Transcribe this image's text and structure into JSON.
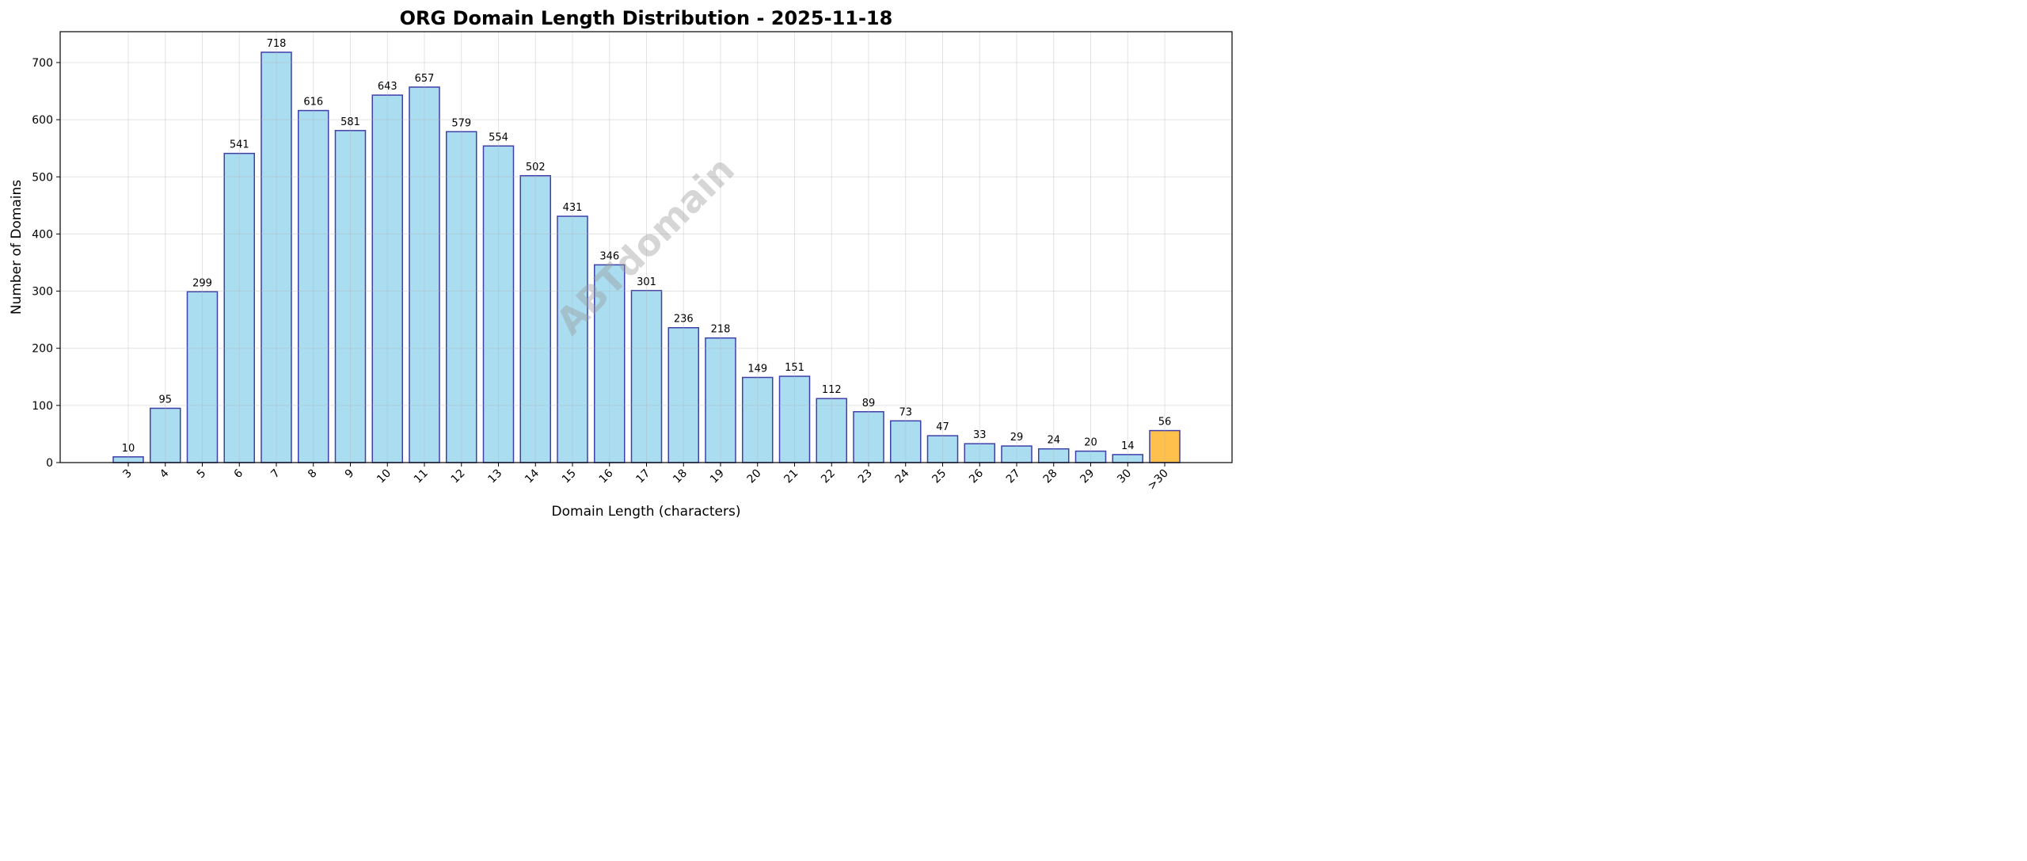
{
  "chart_data": {
    "type": "bar",
    "title": "ORG Domain Length Distribution - 2025-11-18",
    "xlabel": "Domain Length (characters)",
    "ylabel": "Number of Domains",
    "categories": [
      "3",
      "4",
      "5",
      "6",
      "7",
      "8",
      "9",
      "10",
      "11",
      "12",
      "13",
      "14",
      "15",
      "16",
      "17",
      "18",
      "19",
      "20",
      "21",
      "22",
      "23",
      "24",
      "25",
      "26",
      "27",
      "28",
      "29",
      "30",
      ">30"
    ],
    "values": [
      10,
      95,
      299,
      541,
      718,
      616,
      581,
      643,
      657,
      579,
      554,
      502,
      431,
      346,
      301,
      236,
      218,
      149,
      151,
      112,
      89,
      73,
      47,
      33,
      29,
      24,
      20,
      14,
      56
    ],
    "ylim": [
      0,
      754
    ],
    "yticks": [
      0,
      100,
      200,
      300,
      400,
      500,
      600,
      700
    ],
    "grid": true,
    "data_labels": true,
    "colors": {
      "bar_fill": "#87CEEB",
      "bar_edge": "#3F3FAA",
      "highlight_fill": "#FFA500",
      "highlight_category": ">30"
    },
    "watermark": "ABTdomain"
  }
}
